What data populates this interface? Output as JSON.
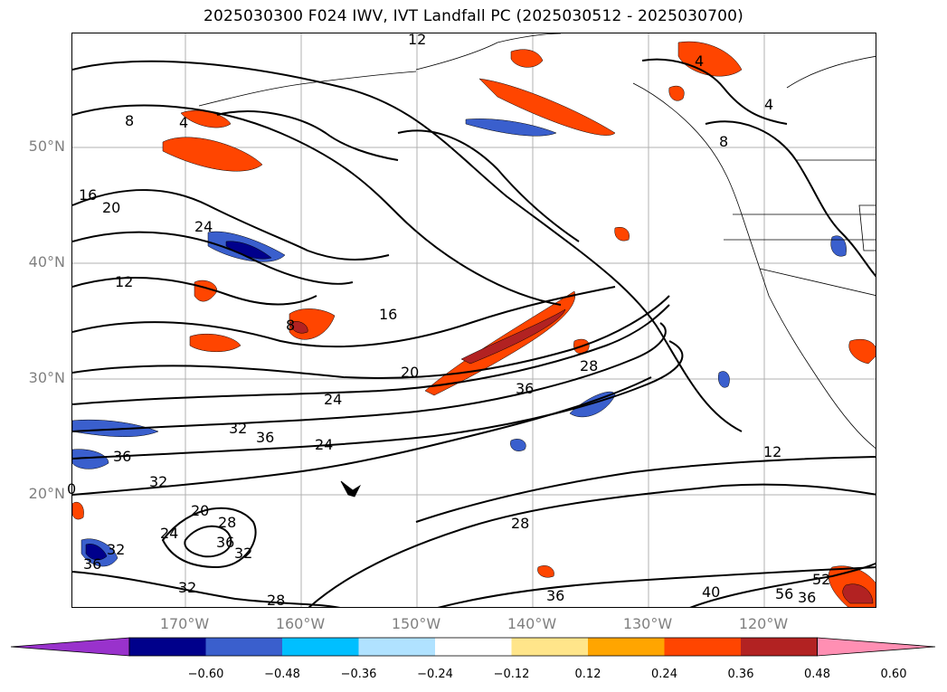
{
  "title": "2025030300 F024 IWV, IVT Landfall PC (2025030512 - 2025030700)",
  "lat_labels": [
    "50°N",
    "40°N",
    "30°N",
    "20°N"
  ],
  "lon_labels": [
    "170°W",
    "160°W",
    "150°W",
    "140°W",
    "130°W",
    "120°W"
  ],
  "contour_labels": [
    "12",
    "4",
    "4",
    "8",
    "4",
    "8",
    "16",
    "20",
    "24",
    "12",
    "8",
    "16",
    "20",
    "24",
    "32",
    "36",
    "24",
    "36",
    "28",
    "36",
    "12",
    "0",
    "32",
    "20",
    "28",
    "24",
    "36",
    "32",
    "32",
    "28",
    "28",
    "36",
    "32",
    "36",
    "40",
    "52",
    "56",
    "36"
  ],
  "colorbar": {
    "ticks": [
      "−0.60",
      "−0.48",
      "−0.36",
      "−0.24",
      "−0.12",
      "0.12",
      "0.24",
      "0.36",
      "0.48",
      "0.60"
    ],
    "colors": [
      "#9932cc",
      "#00008b",
      "#3a5fcd",
      "#00bfff",
      "#b0e2ff",
      "#ffffff",
      "#ffe58a",
      "#ffa500",
      "#ff4500",
      "#b22222",
      "#ff8fb3"
    ]
  }
}
